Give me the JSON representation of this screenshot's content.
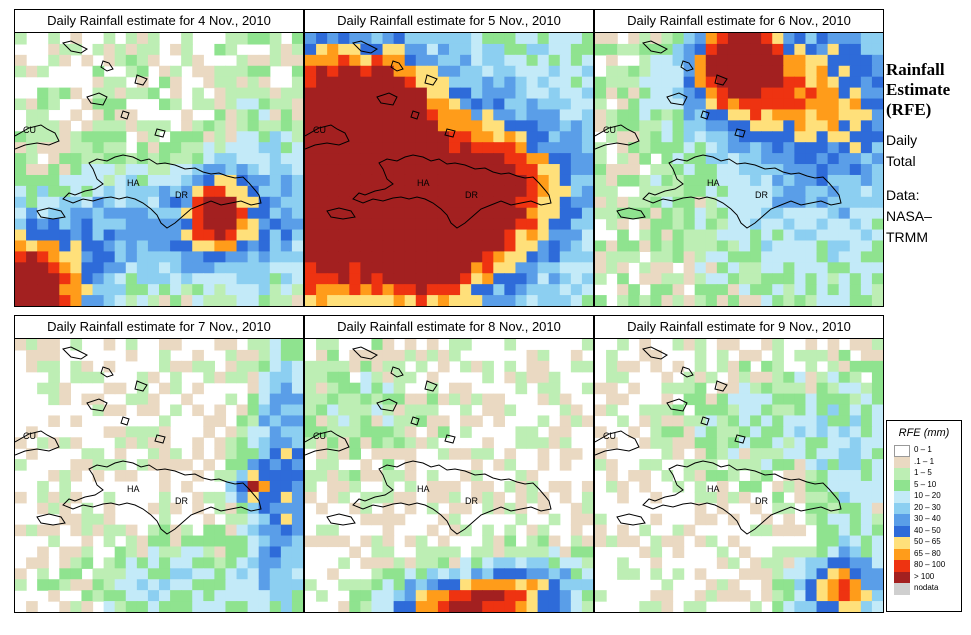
{
  "panels": [
    {
      "id": "p4",
      "title": "Daily Rainfall estimate for  4 Nov., 2010"
    },
    {
      "id": "p5",
      "title": "Daily Rainfall estimate for  5 Nov., 2010"
    },
    {
      "id": "p6",
      "title": "Daily Rainfall estimate for  6 Nov., 2010"
    },
    {
      "id": "p7",
      "title": "Daily Rainfall estimate for  7 Nov., 2010"
    },
    {
      "id": "p8",
      "title": "Daily Rainfall estimate for  8 Nov., 2010"
    },
    {
      "id": "p9",
      "title": "Daily Rainfall estimate for  9 Nov., 2010"
    }
  ],
  "map_labels": {
    "cuba": "CU",
    "haiti": "HA",
    "dominican_republic": "DR"
  },
  "sidebar": {
    "title_line1": "Rainfall",
    "title_line2": "Estimate",
    "title_line3": "(RFE)",
    "daily_line1": "Daily",
    "daily_line2": "Total",
    "data_line1": "Data:",
    "data_line2": "NASA–",
    "data_line3": "TRMM"
  },
  "legend": {
    "title": "RFE (mm)",
    "items": [
      {
        "label": "0 – 1",
        "color": "#ffffff"
      },
      {
        "label": ".1 – 1",
        "color": "#ead9c2"
      },
      {
        "label": "1 – 5",
        "color": "#bdeeb4"
      },
      {
        "label": "5 – 10",
        "color": "#8fe38f"
      },
      {
        "label": "10 – 20",
        "color": "#c3eaf8"
      },
      {
        "label": "20 – 30",
        "color": "#8ccff1"
      },
      {
        "label": "30 – 40",
        "color": "#5a9ee8"
      },
      {
        "label": "40 – 50",
        "color": "#2e6bd9"
      },
      {
        "label": "50 – 65",
        "color": "#ffe07a"
      },
      {
        "label": "65 – 80",
        "color": "#ff9c1a"
      },
      {
        "label": "80 – 100",
        "color": "#ee3311"
      },
      {
        "label": "> 100",
        "color": "#a32020"
      },
      {
        "label": "nodata",
        "color": "#cfcfcf"
      }
    ]
  }
}
